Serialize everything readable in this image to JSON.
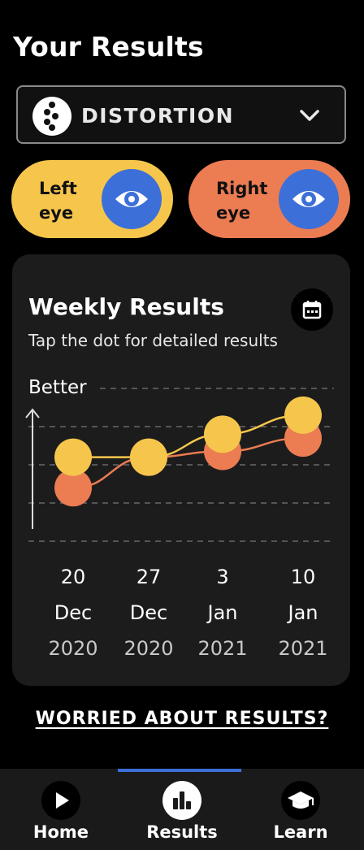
{
  "header": {
    "title": "Your Results"
  },
  "test_selector": {
    "label": "DISTORTION",
    "icon": "vertical-dots-icon"
  },
  "eye_toggles": [
    {
      "label": "Left eye",
      "color": "#f6c64c",
      "icon": "eye-icon"
    },
    {
      "label": "Right eye",
      "color": "#ec7c52",
      "icon": "eye-icon"
    }
  ],
  "card": {
    "title": "Weekly Results",
    "subtitle": "Tap the dot for detailed results",
    "calendar_icon": "calendar-icon"
  },
  "chart_data": {
    "type": "line",
    "ylabel": "Better",
    "grid": true,
    "x": [
      {
        "day": "20",
        "month": "Dec",
        "year": "2020"
      },
      {
        "day": "27",
        "month": "Dec",
        "year": "2020"
      },
      {
        "day": "3",
        "month": "Jan",
        "year": "2021"
      },
      {
        "day": "10",
        "month": "Jan",
        "year": "2021"
      }
    ],
    "ylim": [
      0,
      4
    ],
    "series": [
      {
        "values": [
          1.4,
          2.2,
          2.35,
          2.7
        ],
        "color": "#ec7c52"
      },
      {
        "values": [
          2.2,
          2.2,
          2.8,
          3.3
        ],
        "color": "#f6c64c"
      }
    ]
  },
  "worried_link": "WORRIED ABOUT RESULTS?",
  "nav": {
    "items": [
      {
        "label": "Home",
        "icon": "play-icon",
        "active": false
      },
      {
        "label": "Results",
        "icon": "bar-chart-icon",
        "active": true
      },
      {
        "label": "Learn",
        "icon": "graduation-cap-icon",
        "active": false
      }
    ],
    "accent": "#3c6fd8"
  }
}
